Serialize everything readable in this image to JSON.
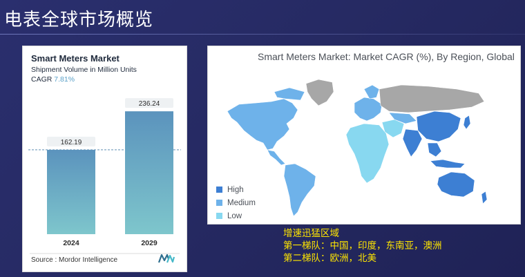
{
  "slide": {
    "title": "电表全球市场概览"
  },
  "left_card": {
    "title": "Smart Meters Market",
    "subtitle": "Shipment Volume in Million Units",
    "cagr_label": "CAGR",
    "cagr_value": "7.81%",
    "source": "Source : Mordor Intelligence"
  },
  "right_card": {
    "title": "Smart Meters Market: Market CAGR (%), By Region, Global",
    "legend": [
      {
        "label": "High",
        "color": "#3d7fd3"
      },
      {
        "label": "Medium",
        "color": "#6eb2ea"
      },
      {
        "label": "Low",
        "color": "#88d8f0"
      }
    ],
    "no_data_color": "#a7a7a7"
  },
  "notes": {
    "heading": "增速迅猛区域",
    "line1": "第一梯队：中国，印度，东南亚，澳洲",
    "line2": "第二梯队：欧洲，北美"
  },
  "chart_data": {
    "type": "bar",
    "title": "Smart Meters Market",
    "subtitle": "Shipment Volume in Million Units",
    "categories": [
      "2024",
      "2029"
    ],
    "values": [
      162.19,
      236.24
    ],
    "value_labels": [
      "162.19",
      "236.24"
    ],
    "xlabel": "",
    "ylabel": "Shipment Volume in Million Units",
    "ylim": [
      0,
      255
    ],
    "grid": false,
    "reference_line_at": 162.19,
    "bar_color_top": "#5b93bd",
    "bar_color_bottom": "#7ec6cc"
  }
}
